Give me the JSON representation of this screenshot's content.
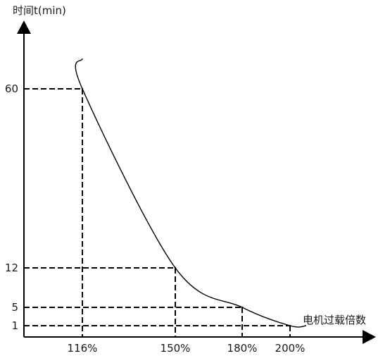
{
  "chart_data": {
    "type": "line",
    "title": "",
    "ylabel": "时间t(min)",
    "xlabel": "电机过载倍数",
    "x_tick_labels": [
      "116%",
      "150%",
      "180%",
      "200%"
    ],
    "y_tick_labels": [
      "60",
      "12",
      "5",
      "1"
    ],
    "points": [
      {
        "x": 116,
        "y": 60
      },
      {
        "x": 150,
        "y": 12
      },
      {
        "x": 180,
        "y": 5
      },
      {
        "x": 200,
        "y": 1
      }
    ],
    "curve_start_above": {
      "x": 116,
      "y_note": "curve rises above the 60 min mark toward the top of the axis"
    },
    "grid": false,
    "reference_lines": "dashed",
    "legend": "none",
    "line_color": "#000000",
    "axis_color": "#000000"
  }
}
